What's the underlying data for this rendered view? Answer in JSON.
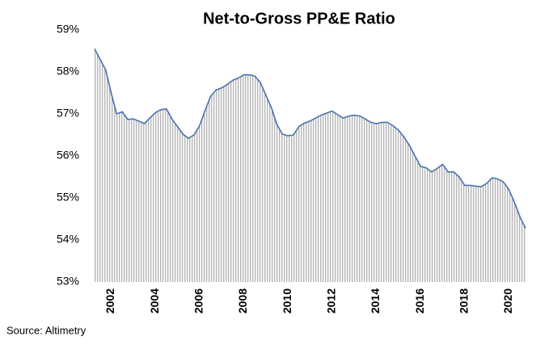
{
  "chart_data": {
    "type": "area",
    "title": "Net-to-Gross  PP&E Ratio",
    "source": "Source: Altimetry",
    "x": [
      2001.25,
      2001.5,
      2001.75,
      2002,
      2002.25,
      2002.5,
      2002.75,
      2003,
      2003.25,
      2003.5,
      2003.75,
      2004,
      2004.25,
      2004.5,
      2004.75,
      2005,
      2005.25,
      2005.5,
      2005.75,
      2006,
      2006.25,
      2006.5,
      2006.75,
      2007,
      2007.25,
      2007.5,
      2007.75,
      2008,
      2008.25,
      2008.5,
      2008.75,
      2009,
      2009.25,
      2009.5,
      2009.75,
      2010,
      2010.25,
      2010.5,
      2010.75,
      2011,
      2011.25,
      2011.5,
      2011.75,
      2012,
      2012.25,
      2012.5,
      2012.75,
      2013,
      2013.25,
      2013.5,
      2013.75,
      2014,
      2014.25,
      2014.5,
      2014.75,
      2015,
      2015.25,
      2015.5,
      2015.75,
      2016,
      2016.25,
      2016.5,
      2016.75,
      2017,
      2017.25,
      2017.5,
      2017.75,
      2018,
      2018.25,
      2018.5,
      2018.75,
      2019,
      2019.25,
      2019.5,
      2019.75,
      2020,
      2020.25,
      2020.5,
      2020.75
    ],
    "values": [
      58.55,
      58.3,
      58.05,
      57.5,
      57.0,
      57.05,
      56.87,
      56.88,
      56.83,
      56.77,
      56.9,
      57.03,
      57.1,
      57.12,
      56.88,
      56.7,
      56.52,
      56.42,
      56.5,
      56.72,
      57.08,
      57.42,
      57.57,
      57.62,
      57.7,
      57.8,
      57.85,
      57.93,
      57.93,
      57.9,
      57.75,
      57.45,
      57.15,
      56.75,
      56.52,
      56.48,
      56.5,
      56.7,
      56.78,
      56.83,
      56.9,
      56.97,
      57.02,
      57.07,
      56.98,
      56.9,
      56.95,
      56.97,
      56.95,
      56.88,
      56.8,
      56.77,
      56.8,
      56.8,
      56.72,
      56.62,
      56.45,
      56.25,
      56.0,
      55.75,
      55.72,
      55.62,
      55.7,
      55.8,
      55.62,
      55.62,
      55.5,
      55.3,
      55.3,
      55.28,
      55.27,
      55.35,
      55.48,
      55.45,
      55.38,
      55.2,
      54.9,
      54.55,
      54.28
    ],
    "color": "#4a72b0",
    "fill_color": "#b5b5b5",
    "xlim": [
      2001.25,
      2020.75
    ],
    "xticks": [
      2002,
      2004,
      2006,
      2008,
      2010,
      2012,
      2014,
      2016,
      2018,
      2020
    ],
    "ylim": [
      53,
      59
    ],
    "yticks": [
      {
        "value": 53,
        "label": "53%"
      },
      {
        "value": 54,
        "label": "54%"
      },
      {
        "value": 55,
        "label": "55%"
      },
      {
        "value": 56,
        "label": "56%"
      },
      {
        "value": 57,
        "label": "57%"
      },
      {
        "value": 58,
        "label": "58%"
      },
      {
        "value": 59,
        "label": "59%"
      }
    ],
    "grid": false
  }
}
